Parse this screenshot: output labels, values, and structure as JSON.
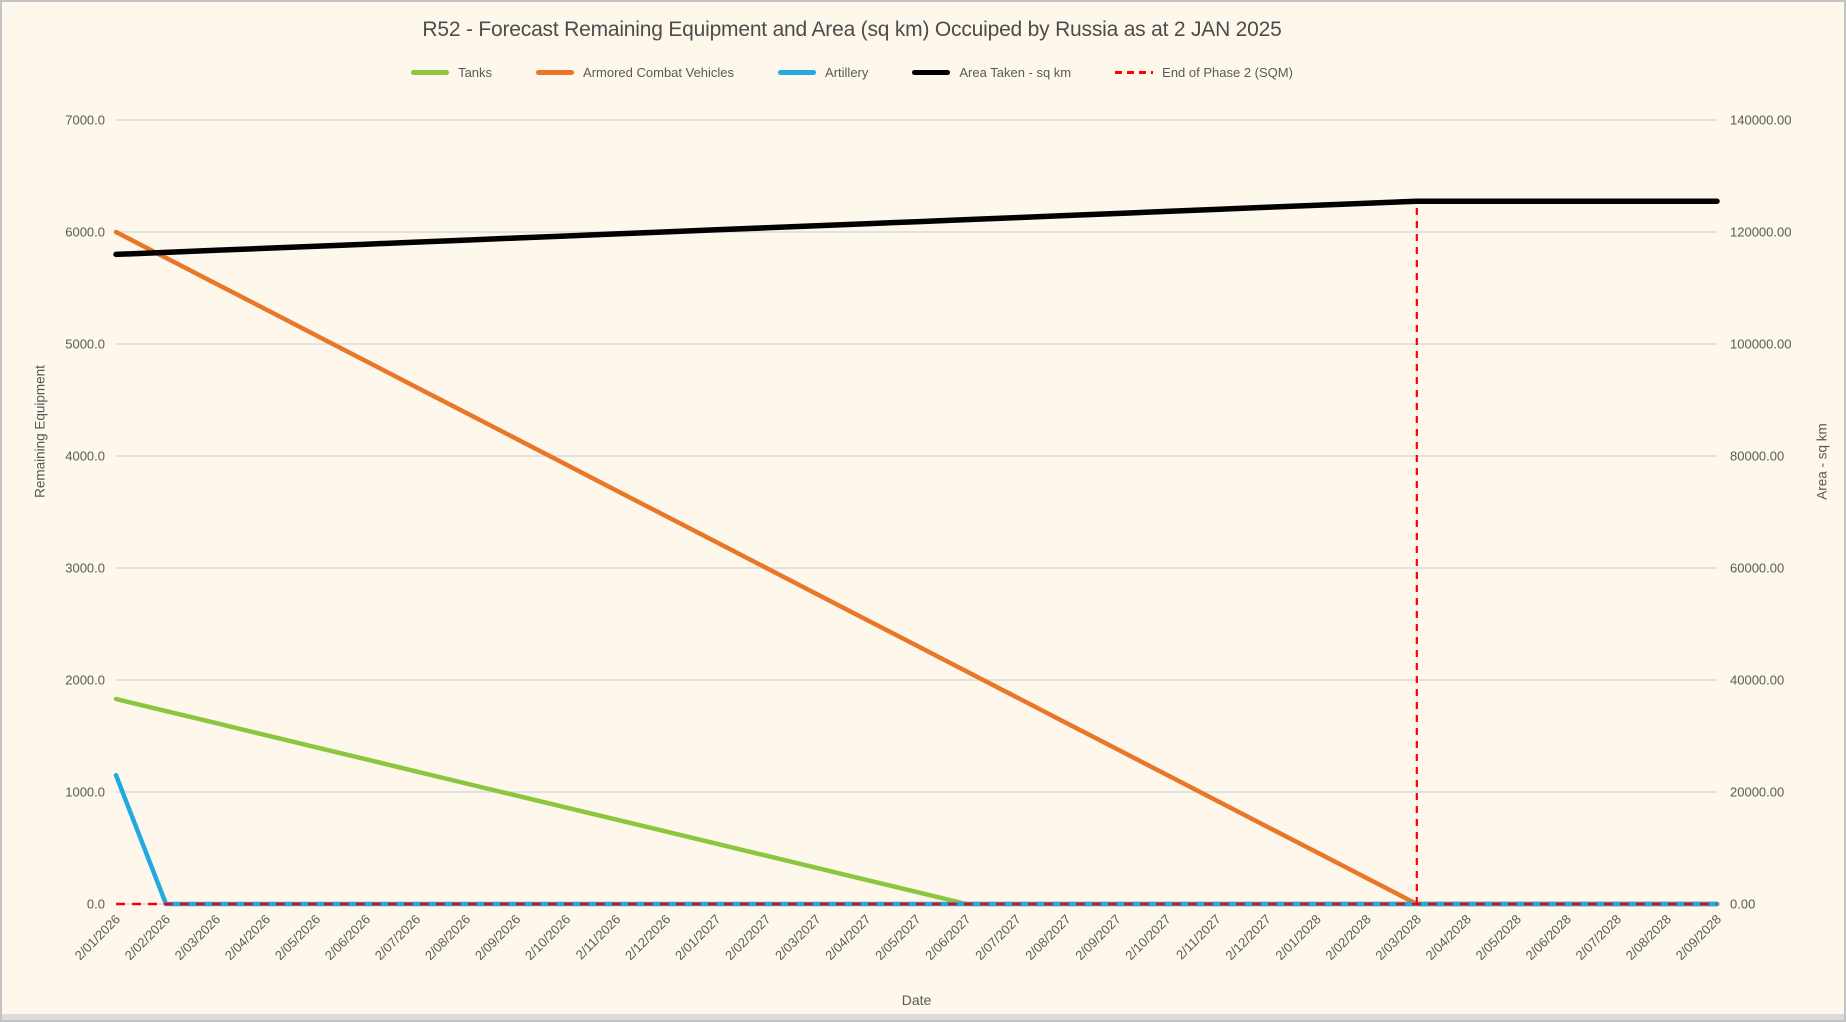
{
  "colors": {
    "background": "#FDF8EB",
    "gridline": "#D9D9D9",
    "text": "#595959",
    "title_text": "#4C4C4C",
    "tanks": "#8CC63E",
    "armored_combat_vehicles": "#E87828",
    "artillery": "#22A9E0",
    "area_taken": "#000000",
    "end_of_phase_2": "#FF0000"
  },
  "chart_data": {
    "type": "line",
    "title": "R52 - Forecast Remaining Equipment and Area (sq km) Occuiped by Russia as at 2 JAN 2025",
    "legend_position": "top",
    "grid": true,
    "x_axis": {
      "title": "Date",
      "tick_rotation_deg": -45
    },
    "left_axis": {
      "title": "Remaining Equipment",
      "min": 0,
      "max": 7000,
      "step": 1000,
      "decimals": 1
    },
    "right_axis": {
      "title": "Area - sq km",
      "min": 0,
      "max": 140000,
      "step": 20000,
      "decimals": 2
    },
    "categories": [
      "2/01/2026",
      "2/02/2026",
      "2/03/2026",
      "2/04/2026",
      "2/05/2026",
      "2/06/2026",
      "2/07/2026",
      "2/08/2026",
      "2/09/2026",
      "2/10/2026",
      "2/11/2026",
      "2/12/2026",
      "2/01/2027",
      "2/02/2027",
      "2/03/2027",
      "2/04/2027",
      "2/05/2027",
      "2/06/2027",
      "2/07/2027",
      "2/08/2027",
      "2/09/2027",
      "2/10/2027",
      "2/11/2027",
      "2/12/2027",
      "2/01/2028",
      "2/02/2028",
      "2/03/2028",
      "2/04/2028",
      "2/05/2028",
      "2/06/2028",
      "2/07/2028",
      "2/08/2028",
      "2/09/2028"
    ],
    "series": [
      {
        "name": "Tanks",
        "axis": "left",
        "color": "#8CC63E",
        "style": "solid",
        "values": [
          1830,
          1722,
          1615,
          1507,
          1399,
          1292,
          1184,
          1076,
          969,
          861,
          754,
          646,
          538,
          431,
          323,
          215,
          108,
          0,
          0,
          0,
          0,
          0,
          0,
          0,
          0,
          0,
          0,
          0,
          0,
          0,
          0,
          0,
          0
        ]
      },
      {
        "name": "Armored Combat Vehicles",
        "axis": "left",
        "color": "#E87828",
        "style": "solid",
        "values": [
          6000,
          5769,
          5538,
          5308,
          5077,
          4846,
          4615,
          4385,
          4154,
          3923,
          3692,
          3462,
          3231,
          3000,
          2769,
          2538,
          2308,
          2077,
          1846,
          1615,
          1385,
          1154,
          923,
          692,
          462,
          231,
          0,
          0,
          0,
          0,
          0,
          0,
          0
        ]
      },
      {
        "name": "Artillery",
        "axis": "left",
        "color": "#22A9E0",
        "style": "solid",
        "values": [
          1150,
          0,
          0,
          0,
          0,
          0,
          0,
          0,
          0,
          0,
          0,
          0,
          0,
          0,
          0,
          0,
          0,
          0,
          0,
          0,
          0,
          0,
          0,
          0,
          0,
          0,
          0,
          0,
          0,
          0,
          0,
          0,
          0
        ]
      },
      {
        "name": "Area Taken - sq km",
        "axis": "right",
        "color": "#000000",
        "style": "solid",
        "values": [
          116000,
          116365,
          116731,
          117096,
          117462,
          117827,
          118192,
          118558,
          118923,
          119288,
          119654,
          120019,
          120385,
          120750,
          121115,
          121481,
          121846,
          122212,
          122577,
          122942,
          123308,
          123673,
          124038,
          124404,
          124769,
          125135,
          125500,
          125500,
          125500,
          125500,
          125500,
          125500,
          125500
        ]
      }
    ],
    "event_line": {
      "name": "End of Phase 2 (SQM)",
      "color": "#FF0000",
      "style": "dashed",
      "axis": "right",
      "x_category": "2/03/2028",
      "baseline_value": 0,
      "peak_value": 125500
    }
  }
}
